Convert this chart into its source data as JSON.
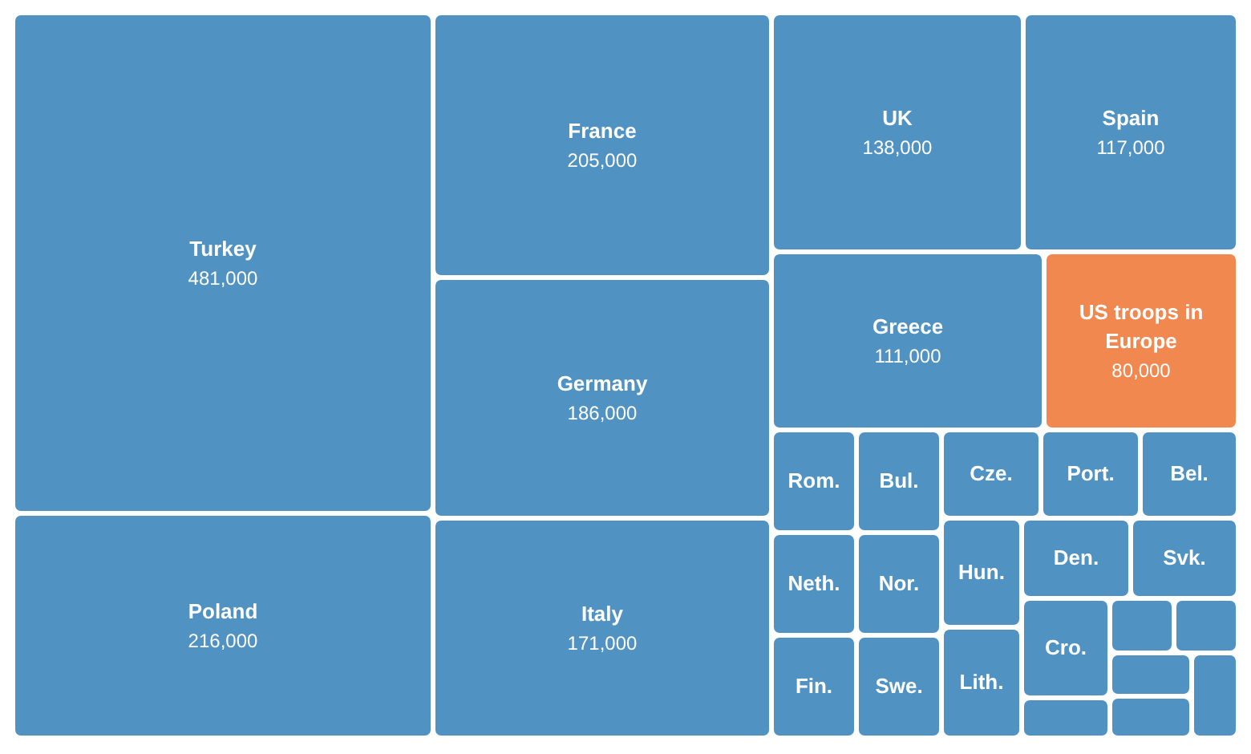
{
  "chart_data": {
    "type": "other",
    "categories": [
      "Turkey",
      "Poland",
      "France",
      "Germany",
      "Italy",
      "UK",
      "Spain",
      "Greece",
      "US troops in Europe",
      "Rom.",
      "Neth.",
      "Fin.",
      "Bul.",
      "Nor.",
      "Swe.",
      "Cze.",
      "Port.",
      "Bel.",
      "Hun.",
      "Lith.",
      "Den.",
      "Svk.",
      "Cro.",
      null,
      null,
      null,
      null,
      null,
      null
    ],
    "values": [
      481000,
      216000,
      205000,
      186000,
      171000,
      138000,
      117000,
      111000,
      80000,
      null,
      null,
      null,
      null,
      null,
      null,
      null,
      null,
      null,
      null,
      null,
      null,
      null,
      null,
      null,
      null,
      null,
      null,
      null,
      null
    ],
    "value_labels": [
      "481,000",
      "216,000",
      "205,000",
      "186,000",
      "171,000",
      "138,000",
      "117,000",
      "111,000",
      "80,000",
      null,
      null,
      null,
      null,
      null,
      null,
      null,
      null,
      null,
      null,
      null,
      null,
      null,
      null,
      null,
      null,
      null,
      null,
      null,
      null
    ],
    "colors": [
      "#5092c2",
      "#5092c2",
      "#5092c2",
      "#5092c2",
      "#5092c2",
      "#5092c2",
      "#5092c2",
      "#5092c2",
      "#f0884f",
      "#5092c2",
      "#5092c2",
      "#5092c2",
      "#5092c2",
      "#5092c2",
      "#5092c2",
      "#5092c2",
      "#5092c2",
      "#5092c2",
      "#5092c2",
      "#5092c2",
      "#5092c2",
      "#5092c2",
      "#5092c2",
      "#5092c2",
      "#5092c2",
      "#5092c2",
      "#5092c2",
      "#5092c2",
      "#5092c2"
    ]
  }
}
